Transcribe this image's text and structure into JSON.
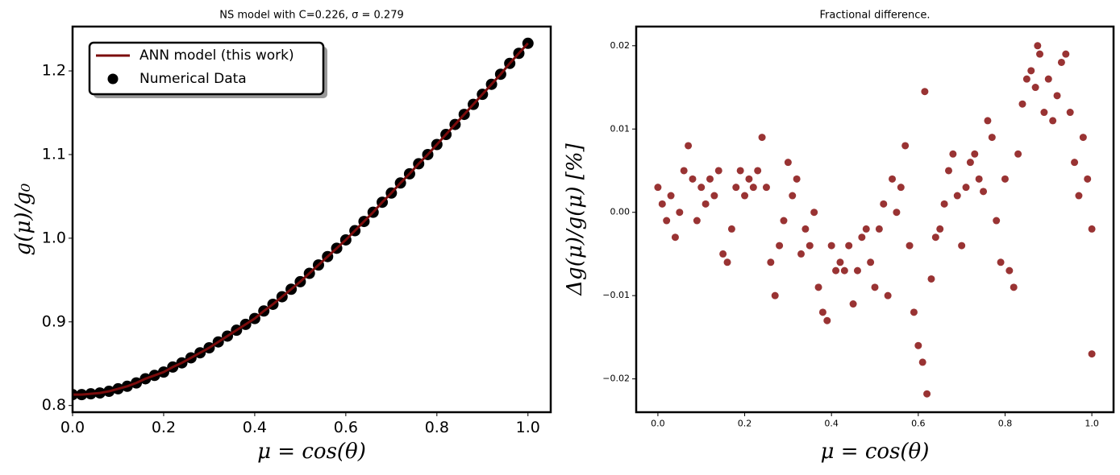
{
  "chart_data": [
    {
      "type": "line",
      "title": "NS model with C=0.226, σ = 0.279",
      "xlabel": "μ = cos(θ)",
      "ylabel": "g(μ)/g₀",
      "x": [
        0,
        0.02,
        0.04,
        0.06,
        0.08,
        0.1,
        0.12,
        0.14,
        0.16,
        0.18,
        0.2,
        0.22,
        0.24,
        0.26,
        0.28,
        0.3,
        0.32,
        0.34,
        0.36,
        0.38,
        0.4,
        0.42,
        0.44,
        0.46,
        0.48,
        0.5,
        0.52,
        0.54,
        0.56,
        0.58,
        0.6,
        0.62,
        0.64,
        0.66,
        0.68,
        0.7,
        0.72,
        0.74,
        0.76,
        0.78,
        0.8,
        0.82,
        0.84,
        0.86,
        0.88,
        0.9,
        0.92,
        0.94,
        0.96,
        0.98,
        1.0
      ],
      "series": [
        {
          "name": "ANN model (this work)",
          "mark": "line",
          "color": "#7b0c0c",
          "values": [
            0.813,
            0.813,
            0.814,
            0.815,
            0.817,
            0.82,
            0.823,
            0.827,
            0.832,
            0.836,
            0.84,
            0.846,
            0.851,
            0.857,
            0.863,
            0.869,
            0.876,
            0.883,
            0.89,
            0.897,
            0.904,
            0.913,
            0.921,
            0.93,
            0.939,
            0.948,
            0.958,
            0.968,
            0.978,
            0.988,
            0.998,
            1.009,
            1.02,
            1.031,
            1.043,
            1.054,
            1.066,
            1.077,
            1.089,
            1.1,
            1.112,
            1.124,
            1.136,
            1.148,
            1.16,
            1.172,
            1.184,
            1.196,
            1.209,
            1.221,
            1.233
          ]
        },
        {
          "name": "Numerical Data",
          "mark": "scatter",
          "color": "#000000",
          "values": [
            0.813,
            0.813,
            0.814,
            0.815,
            0.817,
            0.82,
            0.823,
            0.827,
            0.832,
            0.836,
            0.84,
            0.846,
            0.851,
            0.857,
            0.863,
            0.869,
            0.876,
            0.883,
            0.89,
            0.897,
            0.904,
            0.913,
            0.921,
            0.93,
            0.939,
            0.948,
            0.958,
            0.968,
            0.978,
            0.988,
            0.998,
            1.009,
            1.02,
            1.031,
            1.043,
            1.054,
            1.066,
            1.077,
            1.089,
            1.1,
            1.112,
            1.124,
            1.136,
            1.148,
            1.16,
            1.172,
            1.184,
            1.196,
            1.209,
            1.221,
            1.233
          ]
        }
      ],
      "xlim": [
        0,
        1.05
      ],
      "ylim": [
        0.792,
        1.253
      ],
      "xticks": [
        {
          "value": 0,
          "label": "0.0"
        },
        0.2,
        0.4,
        0.6,
        0.8,
        {
          "value": 1,
          "label": "1.0"
        }
      ],
      "yticks": [
        0.8,
        0.9,
        {
          "value": 1,
          "label": "1.0"
        },
        1.1,
        1.2
      ],
      "legend": "upper left"
    },
    {
      "type": "scatter",
      "title": "Fractional difference.",
      "xlabel": "μ = cos(θ)",
      "ylabel": "Δg(μ)/g(μ)  [%]",
      "x": [
        0,
        0.01,
        0.02,
        0.03,
        0.04,
        0.05,
        0.06,
        0.07,
        0.08,
        0.09,
        0.1,
        0.11,
        0.12,
        0.13,
        0.14,
        0.15,
        0.16,
        0.17,
        0.18,
        0.19,
        0.2,
        0.21,
        0.22,
        0.23,
        0.24,
        0.25,
        0.26,
        0.27,
        0.28,
        0.29,
        0.3,
        0.31,
        0.32,
        0.33,
        0.34,
        0.35,
        0.36,
        0.37,
        0.38,
        0.39,
        0.4,
        0.41,
        0.42,
        0.43,
        0.44,
        0.45,
        0.46,
        0.47,
        0.48,
        0.49,
        0.5,
        0.51,
        0.52,
        0.53,
        0.54,
        0.55,
        0.56,
        0.57,
        0.58,
        0.59,
        0.6,
        0.61,
        0.615,
        0.62,
        0.63,
        0.64,
        0.65,
        0.66,
        0.67,
        0.68,
        0.69,
        0.7,
        0.71,
        0.72,
        0.73,
        0.74,
        0.75,
        0.76,
        0.77,
        0.78,
        0.79,
        0.8,
        0.81,
        0.82,
        0.83,
        0.84,
        0.85,
        0.86,
        0.87,
        0.875,
        0.88,
        0.89,
        0.9,
        0.91,
        0.92,
        0.93,
        0.94,
        0.95,
        0.96,
        0.97,
        0.98,
        0.99,
        1.0,
        1.0
      ],
      "series": [
        {
          "name": "Fractional difference",
          "color": "#800000",
          "values": [
            0.003,
            0.001,
            -0.001,
            0.002,
            -0.003,
            0.0,
            0.005,
            0.008,
            0.004,
            -0.001,
            0.003,
            0.001,
            0.004,
            0.002,
            0.005,
            -0.005,
            -0.006,
            -0.002,
            0.003,
            0.005,
            0.002,
            0.004,
            0.003,
            0.005,
            0.009,
            0.003,
            -0.006,
            -0.01,
            -0.004,
            -0.001,
            0.006,
            0.002,
            0.004,
            -0.005,
            -0.002,
            -0.004,
            0.0,
            -0.009,
            -0.012,
            -0.013,
            -0.004,
            -0.007,
            -0.006,
            -0.007,
            -0.004,
            -0.011,
            -0.007,
            -0.003,
            -0.002,
            -0.006,
            -0.009,
            -0.002,
            0.001,
            -0.01,
            0.004,
            0.0,
            0.003,
            0.008,
            -0.004,
            -0.012,
            -0.016,
            -0.018,
            0.0145,
            -0.0218,
            -0.008,
            -0.003,
            -0.002,
            0.001,
            0.005,
            0.007,
            0.002,
            -0.004,
            0.003,
            0.006,
            0.007,
            0.004,
            0.0025,
            0.011,
            0.009,
            -0.001,
            -0.006,
            0.004,
            -0.007,
            -0.009,
            0.007,
            0.013,
            0.016,
            0.017,
            0.015,
            0.02,
            0.019,
            0.012,
            0.016,
            0.011,
            0.014,
            0.018,
            0.019,
            0.012,
            0.006,
            0.002,
            0.009,
            0.004,
            -0.017,
            -0.002
          ]
        }
      ],
      "xlim": [
        -0.05,
        1.05
      ],
      "ylim": [
        -0.024,
        0.0223
      ],
      "xticks": [
        {
          "value": 0,
          "label": "0.0"
        },
        0.2,
        0.4,
        0.6,
        0.8,
        {
          "value": 1,
          "label": "1.0"
        }
      ],
      "yticks": [
        {
          "value": -0.02,
          "label": "−0.02"
        },
        {
          "value": -0.01,
          "label": "−0.01"
        },
        {
          "value": 0,
          "label": "0.00"
        },
        0.01,
        0.02
      ]
    }
  ]
}
